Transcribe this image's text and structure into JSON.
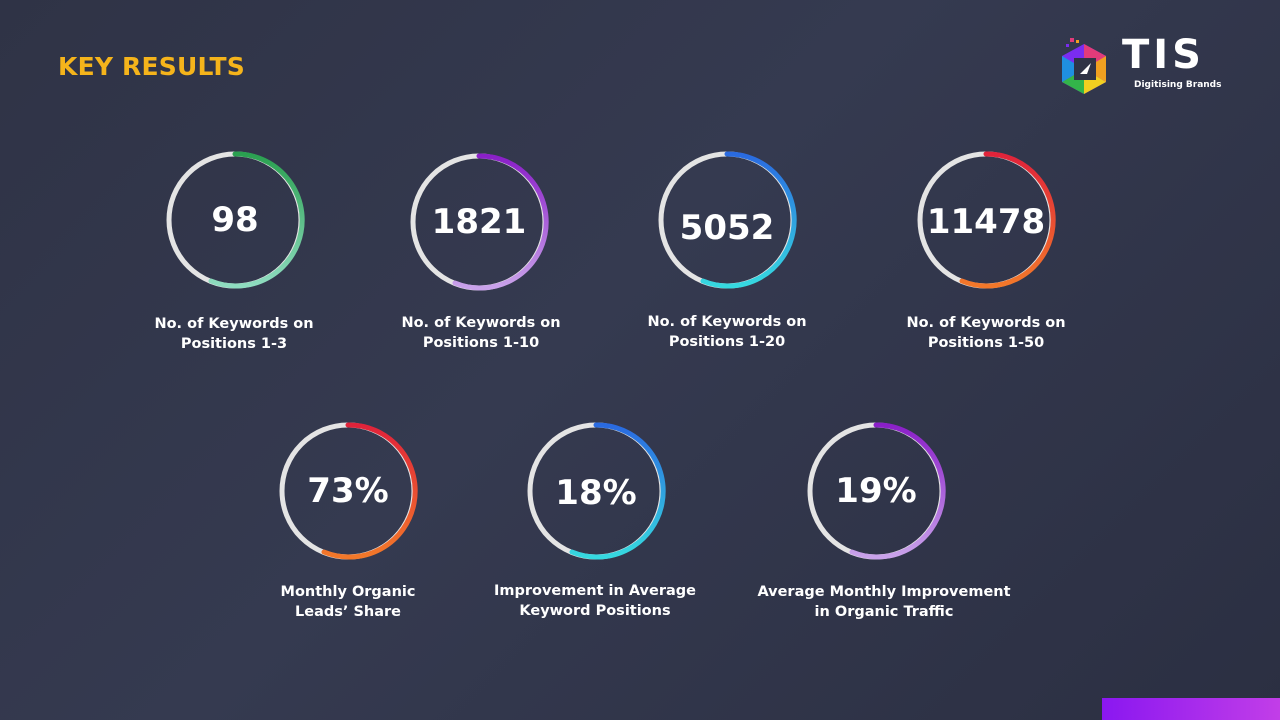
{
  "slide": {
    "title": "KEY RESULTS"
  },
  "logo": {
    "word": "TIS",
    "tagline": "Digitising Brands"
  },
  "metrics": [
    {
      "value": "98",
      "label_line1": "No. of Keywords on",
      "label_line2": "Positions 1-3",
      "arc_colors": [
        "#2aa050",
        "#8fdcc0"
      ]
    },
    {
      "value": "1821",
      "label_line1": "No. of Keywords on",
      "label_line2": "Positions 1-10",
      "arc_colors": [
        "#8a1fc8",
        "#c9a2ea"
      ]
    },
    {
      "value": "5052",
      "label_line1": "No. of Keywords on",
      "label_line2": "Positions 1-20",
      "arc_colors": [
        "#2a6ae0",
        "#36d9e0"
      ]
    },
    {
      "value": "11478",
      "label_line1": "No. of Keywords on",
      "label_line2": "Positions 1-50",
      "arc_colors": [
        "#e0233a",
        "#f2782a"
      ]
    },
    {
      "value": "73%",
      "label_line1": "Monthly Organic",
      "label_line2": "Leads’ Share",
      "arc_colors": [
        "#e0233a",
        "#f2782a"
      ]
    },
    {
      "value": "18%",
      "label_line1": "Improvement in Average",
      "label_line2": "Keyword Positions",
      "arc_colors": [
        "#2a6ae0",
        "#36d9e0"
      ]
    },
    {
      "value": "19%",
      "label_line1": "Average Monthly Improvement",
      "label_line2": "in Organic Traffic",
      "arc_colors": [
        "#8a1fc8",
        "#c9a2ea"
      ]
    }
  ]
}
